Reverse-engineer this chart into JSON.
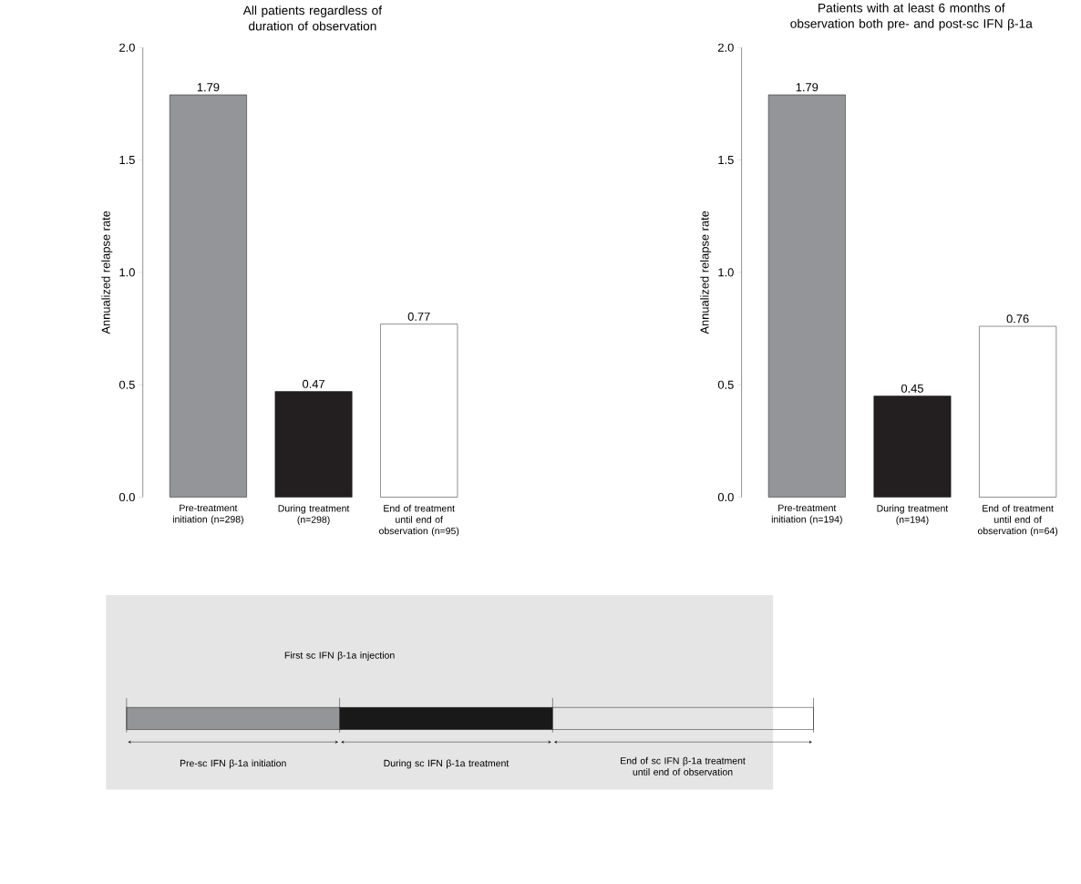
{
  "chart_data": [
    {
      "type": "bar",
      "title": "All patients regardless of duration of observation",
      "ylabel": "Annualized relapse rate",
      "categories": [
        "Pre-treatment initiation (n=298)",
        "During treatment (n=298)",
        "End of treatment until end of observation (n=95)"
      ],
      "values": [
        1.79,
        0.47,
        0.77
      ],
      "colors": [
        "#939598",
        "#231f20",
        "#ffffff"
      ],
      "data_labels": true,
      "ylim": [
        0,
        2
      ],
      "yticks": [
        {
          "value": 0,
          "label": "0.0"
        },
        {
          "value": 0.5,
          "label": "0.5"
        },
        {
          "value": 1,
          "label": "1.0"
        },
        {
          "value": 1.5,
          "label": "1.5"
        },
        {
          "value": 2,
          "label": "2.0"
        }
      ]
    },
    {
      "type": "bar",
      "title": "Patients with at least 6 months of observation both pre- and post-sc IFN β-1a",
      "ylabel": "Annualized relapse rate",
      "categories": [
        "Pre-treatment initiation (n=194)",
        "During treatment (n=194)",
        "End of treatment until end of observation (n=64)"
      ],
      "values": [
        1.79,
        0.45,
        0.76
      ],
      "colors": [
        "#939598",
        "#231f20",
        "#ffffff"
      ],
      "data_labels": true,
      "ylim": [
        0,
        2
      ],
      "yticks": [
        {
          "value": 0,
          "label": "0.0"
        },
        {
          "value": 0.5,
          "label": "0.5"
        },
        {
          "value": 1,
          "label": "1.0"
        },
        {
          "value": 1.5,
          "label": "1.5"
        },
        {
          "value": 2,
          "label": "2.0"
        }
      ]
    },
    {
      "type": "other",
      "annotations": [
        "First sc IFN β-1a injection",
        "Pre-sc IFN β-1a initiation",
        "During sc IFN β-1a treatment",
        "End of sc IFN β-1a treatment until end of observation"
      ]
    }
  ]
}
